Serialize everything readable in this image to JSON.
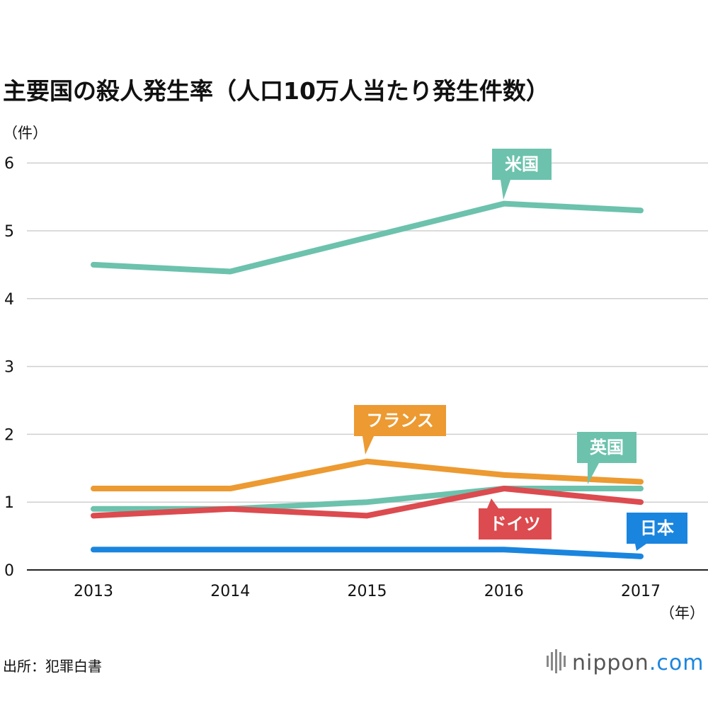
{
  "header": {
    "title": "主要国の殺人発生率（人口10万人当たり発生件数）"
  },
  "footer": {
    "source": "出所：犯罪白書",
    "brand_main": "nippon",
    "brand_tld": ".com"
  },
  "chart_data": {
    "type": "line",
    "title": "主要国の殺人発生率（人口10万人当たり発生件数）",
    "ylabel": "（件）",
    "xlabel": "（年）",
    "x": [
      "2013",
      "2014",
      "2015",
      "2016",
      "2017"
    ],
    "ylim": [
      0,
      6
    ],
    "yticks": [
      "0",
      "1",
      "2",
      "3",
      "4",
      "5",
      "6"
    ],
    "grid": true,
    "series": [
      {
        "name": "米国",
        "color": "#6cc2ad",
        "values": [
          4.5,
          4.4,
          4.9,
          5.4,
          5.3
        ]
      },
      {
        "name": "フランス",
        "color": "#ec9a31",
        "values": [
          1.2,
          1.2,
          1.6,
          1.4,
          1.3
        ]
      },
      {
        "name": "英国",
        "color": "#6cc2ad",
        "values": [
          0.9,
          0.9,
          1.0,
          1.2,
          1.2
        ]
      },
      {
        "name": "ドイツ",
        "color": "#dc4b4f",
        "values": [
          0.8,
          0.9,
          0.8,
          1.2,
          1.0
        ]
      },
      {
        "name": "日本",
        "color": "#1a85de",
        "values": [
          0.3,
          0.3,
          0.3,
          0.3,
          0.2
        ]
      }
    ]
  }
}
